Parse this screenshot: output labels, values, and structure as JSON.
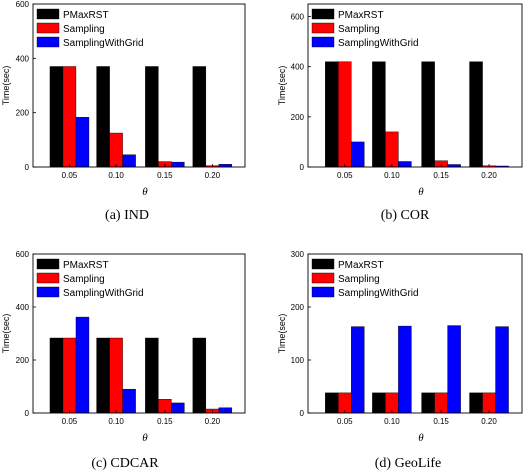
{
  "chart_data": [
    {
      "type": "bar",
      "caption": "(a)  IND",
      "xlabel": "θ",
      "ylabel": "Time(sec)",
      "categories": [
        "0.05",
        "0.10",
        "0.15",
        "0.20"
      ],
      "ylim": [
        0,
        600
      ],
      "yticks": [
        0,
        200,
        400,
        600
      ],
      "legend_position": "top-left",
      "series": [
        {
          "name": "PMaxRST",
          "color": "#000000",
          "values": [
            370,
            370,
            370,
            370
          ]
        },
        {
          "name": "Sampling",
          "color": "#ff0000",
          "values": [
            370,
            125,
            20,
            5
          ]
        },
        {
          "name": "SamplingWithGrid",
          "color": "#0000ff",
          "values": [
            183,
            45,
            18,
            10
          ]
        }
      ]
    },
    {
      "type": "bar",
      "caption": "(b)  COR",
      "xlabel": "θ",
      "ylabel": "Time(sec)",
      "categories": [
        "0.05",
        "0.10",
        "0.15",
        "0.20"
      ],
      "ylim": [
        0,
        650
      ],
      "yticks": [
        0,
        200,
        400,
        600
      ],
      "legend_position": "top-left",
      "series": [
        {
          "name": "PMaxRST",
          "color": "#000000",
          "values": [
            420,
            420,
            420,
            420
          ]
        },
        {
          "name": "Sampling",
          "color": "#ff0000",
          "values": [
            420,
            140,
            25,
            5
          ]
        },
        {
          "name": "SamplingWithGrid",
          "color": "#0000ff",
          "values": [
            100,
            22,
            10,
            4
          ]
        }
      ]
    },
    {
      "type": "bar",
      "caption": "(c)  CDCAR",
      "xlabel": "θ",
      "ylabel": "Time(sec)",
      "categories": [
        "0.05",
        "0.10",
        "0.15",
        "0.20"
      ],
      "ylim": [
        0,
        600
      ],
      "yticks": [
        0,
        200,
        400,
        600
      ],
      "legend_position": "top-left",
      "series": [
        {
          "name": "PMaxRST",
          "color": "#000000",
          "values": [
            283,
            283,
            283,
            283
          ]
        },
        {
          "name": "Sampling",
          "color": "#ff0000",
          "values": [
            283,
            283,
            52,
            15
          ]
        },
        {
          "name": "SamplingWithGrid",
          "color": "#0000ff",
          "values": [
            362,
            90,
            38,
            20
          ]
        }
      ]
    },
    {
      "type": "bar",
      "caption": "(d)  GeoLife",
      "xlabel": "θ",
      "ylabel": "Time(sec)",
      "categories": [
        "0.05",
        "0.10",
        "0.15",
        "0.20"
      ],
      "ylim": [
        0,
        300
      ],
      "yticks": [
        0,
        100,
        200,
        300
      ],
      "legend_position": "top-left",
      "series": [
        {
          "name": "PMaxRST",
          "color": "#000000",
          "values": [
            38,
            38,
            38,
            38
          ]
        },
        {
          "name": "Sampling",
          "color": "#ff0000",
          "values": [
            38,
            38,
            38,
            38
          ]
        },
        {
          "name": "SamplingWithGrid",
          "color": "#0000ff",
          "values": [
            163,
            164,
            165,
            163
          ]
        }
      ]
    }
  ]
}
